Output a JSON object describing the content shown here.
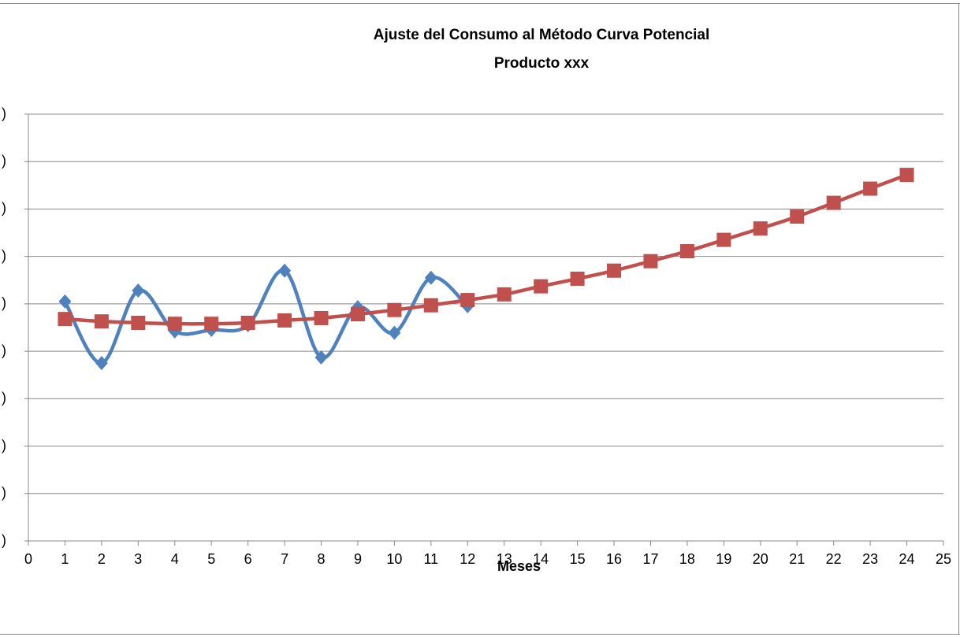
{
  "chart_data": {
    "type": "line",
    "title": "Ajuste del Consumo al Método Curva Potencial",
    "subtitle": "Producto xxx",
    "x_label": "Meses",
    "x": [
      1,
      2,
      3,
      4,
      5,
      6,
      7,
      8,
      9,
      10,
      11,
      12,
      13,
      14,
      15,
      16,
      17,
      18,
      19,
      20,
      21,
      22,
      23,
      24
    ],
    "series": [
      {
        "color": "#4f81bd",
        "marker": "diamond",
        "values": [
          5.05,
          3.75,
          5.28,
          4.42,
          4.45,
          4.55,
          5.7,
          3.87,
          4.93,
          4.39,
          5.55,
          4.95,
          null,
          null,
          null,
          null,
          null,
          null,
          null,
          null,
          null,
          null,
          null,
          null
        ]
      },
      {
        "color": "#c0504d",
        "marker": "square",
        "values": [
          4.68,
          4.63,
          4.6,
          4.58,
          4.58,
          4.6,
          4.65,
          4.7,
          4.78,
          4.87,
          4.97,
          5.08,
          5.2,
          5.37,
          5.53,
          5.7,
          5.9,
          6.11,
          6.35,
          6.59,
          6.84,
          7.13,
          7.43,
          7.72
        ]
      }
    ],
    "xlim": [
      0,
      25
    ],
    "xticks": [
      0,
      1,
      2,
      3,
      4,
      5,
      6,
      7,
      8,
      9,
      10,
      11,
      12,
      13,
      14,
      15,
      16,
      17,
      18,
      19,
      20,
      21,
      22,
      23,
      24,
      25
    ],
    "ylim": [
      0,
      9
    ],
    "yticks": [
      {
        "value": 0,
        "label": ")"
      },
      {
        "value": 1,
        "label": ")"
      },
      {
        "value": 2,
        "label": ")"
      },
      {
        "value": 3,
        "label": ")"
      },
      {
        "value": 4,
        "label": ")"
      },
      {
        "value": 5,
        "label": ")"
      },
      {
        "value": 6,
        "label": ")"
      },
      {
        "value": 7,
        "label": ")"
      },
      {
        "value": 8,
        "label": ")"
      },
      {
        "value": 9,
        "label": ")"
      }
    ],
    "grid": true,
    "smooth": true
  }
}
